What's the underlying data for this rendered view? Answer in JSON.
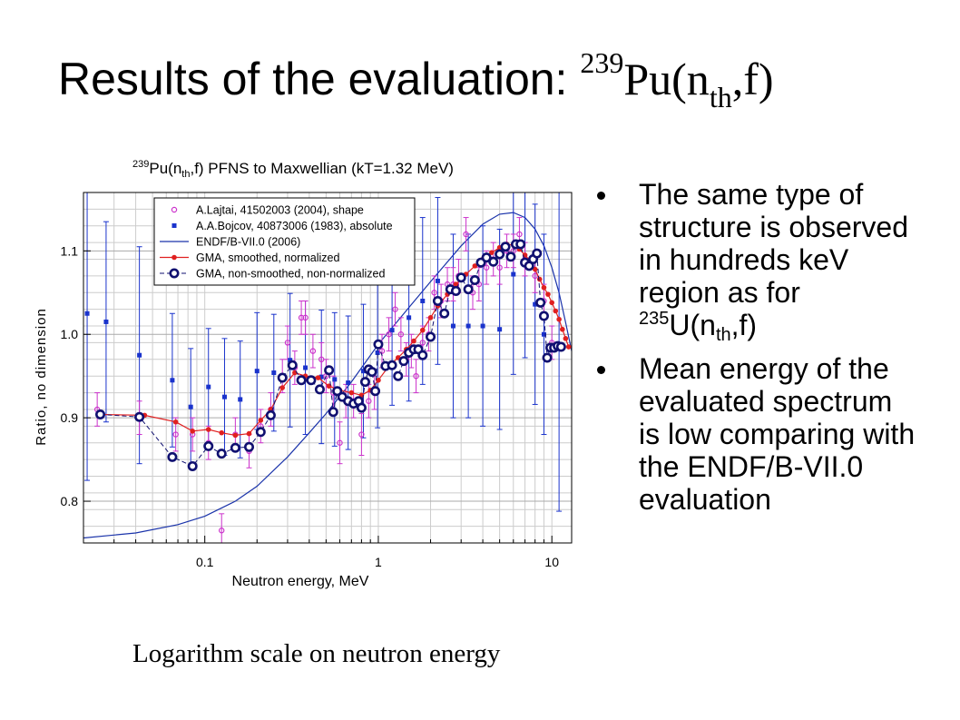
{
  "slide": {
    "title_main": "Results of the evaluation: ",
    "title_sup": "239",
    "title_pu": "Pu(n",
    "title_sub": "th",
    "title_end": ",f)",
    "bullets": [
      {
        "text_before": "The same type of structure is observed in hundreds keV region as for ",
        "sup": "235",
        "mid": "U(n",
        "sub": "th",
        "after": ",f)"
      },
      {
        "text": "Mean energy of the evaluated spectrum is low comparing with the ENDF/B-VII.0 evaluation"
      }
    ],
    "caption": "Logarithm scale on neutron energy"
  },
  "chart_data": {
    "type": "scatter",
    "title_parts": {
      "sup": "239",
      "pre": "Pu(n",
      "sub": "th",
      "post": ",f) PFNS to Maxwellian (kT=1.32 MeV)"
    },
    "xlabel": "Neutron energy, MeV",
    "ylabel": "Ratio, no dimension",
    "xscale": "log",
    "xlim": [
      0.02,
      13
    ],
    "ylim": [
      0.75,
      1.17
    ],
    "x_ticks": [
      {
        "v": 0.1,
        "label": "0.1"
      },
      {
        "v": 1,
        "label": "1"
      },
      {
        "v": 10,
        "label": "10"
      }
    ],
    "y_ticks": [
      {
        "v": 0.8,
        "label": "0.8"
      },
      {
        "v": 0.9,
        "label": "0.9"
      },
      {
        "v": 1.0,
        "label": "1.0"
      },
      {
        "v": 1.1,
        "label": "1.1"
      }
    ],
    "grid": true,
    "legend_position": "top-left",
    "colors": {
      "lajtai": "#cc33cc",
      "bojcov": "#1a33cc",
      "endf": "#1a33aa",
      "gma_smoothed": "#e02020",
      "gma_raw": "#101070",
      "grid": "#cccccc"
    },
    "series": [
      {
        "name": "A.Lajtai, 41502003 (2004), shape",
        "marker": "open-circle",
        "x": [
          0.024,
          0.042,
          0.068,
          0.085,
          0.105,
          0.125,
          0.15,
          0.18,
          0.21,
          0.24,
          0.28,
          0.3,
          0.33,
          0.36,
          0.38,
          0.42,
          0.47,
          0.5,
          0.55,
          0.6,
          0.65,
          0.72,
          0.8,
          0.88,
          0.95,
          1.05,
          1.15,
          1.25,
          1.35,
          1.45,
          1.55,
          1.65,
          1.8,
          1.95,
          2.1,
          2.3,
          2.5,
          2.7,
          2.9,
          3.2,
          3.5,
          3.8,
          4.2,
          4.6,
          5.0,
          5.5,
          6.0,
          6.5,
          7.0,
          8.0,
          9.0,
          10.0
        ],
        "y": [
          0.91,
          0.9,
          0.88,
          0.88,
          0.87,
          0.765,
          0.88,
          0.86,
          0.89,
          0.91,
          0.95,
          0.99,
          0.96,
          1.02,
          1.02,
          0.98,
          0.97,
          0.95,
          0.93,
          0.87,
          0.92,
          0.92,
          0.88,
          0.92,
          0.93,
          0.98,
          1.0,
          1.03,
          1.0,
          0.97,
          0.98,
          0.95,
          0.99,
          1.0,
          1.05,
          1.04,
          1.06,
          1.06,
          1.07,
          1.12,
          1.05,
          1.06,
          1.08,
          1.09,
          1.08,
          1.1,
          1.1,
          1.12,
          1.09,
          1.07,
          1.04,
          0.99
        ],
        "err": [
          0.02,
          0.02,
          0.02,
          0.02,
          0.02,
          0.02,
          0.02,
          0.02,
          0.02,
          0.02,
          0.02,
          0.02,
          0.02,
          0.02,
          0.02,
          0.02,
          0.02,
          0.02,
          0.02,
          0.025,
          0.02,
          0.02,
          0.025,
          0.02,
          0.02,
          0.02,
          0.02,
          0.02,
          0.02,
          0.02,
          0.02,
          0.02,
          0.02,
          0.02,
          0.02,
          0.02,
          0.02,
          0.02,
          0.02,
          0.02,
          0.02,
          0.02,
          0.02,
          0.02,
          0.02,
          0.02,
          0.02,
          0.02,
          0.02,
          0.02,
          0.02,
          0.02
        ]
      },
      {
        "name": "A.A.Bojcov, 40873006 (1983), absolute",
        "marker": "filled-square",
        "x": [
          0.021,
          0.027,
          0.042,
          0.065,
          0.083,
          0.105,
          0.13,
          0.16,
          0.2,
          0.25,
          0.31,
          0.38,
          0.47,
          0.56,
          0.67,
          0.82,
          0.99,
          1.2,
          1.5,
          1.8,
          2.2,
          2.7,
          3.3,
          4.0,
          5.0,
          6.0,
          7.0,
          8.0,
          9.0,
          11.0
        ],
        "y": [
          1.025,
          1.015,
          0.975,
          0.945,
          0.913,
          0.937,
          0.925,
          0.922,
          0.956,
          0.954,
          0.969,
          0.96,
          0.949,
          0.946,
          0.942,
          0.956,
          0.978,
          1.005,
          1.02,
          1.04,
          1.064,
          1.01,
          1.01,
          1.01,
          1.006,
          1.072,
          1.092,
          1.036,
          1.0,
          0.988
        ],
        "err": [
          0.2,
          0.12,
          0.13,
          0.08,
          0.07,
          0.07,
          0.07,
          0.07,
          0.07,
          0.07,
          0.08,
          0.08,
          0.08,
          0.08,
          0.08,
          0.08,
          0.09,
          0.09,
          0.1,
          0.1,
          0.1,
          0.11,
          0.11,
          0.12,
          0.12,
          0.12,
          0.12,
          0.12,
          0.12,
          0.2
        ]
      },
      {
        "name": "ENDF/B-VII.0 (2006)",
        "marker": "line",
        "x": [
          0.02,
          0.04,
          0.07,
          0.1,
          0.15,
          0.2,
          0.3,
          0.4,
          0.5,
          0.7,
          1.0,
          1.5,
          2.0,
          3.0,
          4.0,
          5.0,
          6.0,
          7.0,
          8.0,
          9.0,
          10.0,
          11.0,
          12.0,
          13.0
        ],
        "y": [
          0.756,
          0.762,
          0.772,
          0.782,
          0.8,
          0.818,
          0.853,
          0.882,
          0.905,
          0.943,
          0.988,
          1.032,
          1.063,
          1.106,
          1.132,
          1.144,
          1.146,
          1.14,
          1.126,
          1.106,
          1.08,
          1.05,
          1.014,
          0.98
        ]
      },
      {
        "name": "GMA, smoothed, normalized",
        "marker": "filled-circle-line",
        "x": [
          0.025,
          0.045,
          0.068,
          0.085,
          0.105,
          0.125,
          0.15,
          0.18,
          0.21,
          0.24,
          0.28,
          0.33,
          0.38,
          0.45,
          0.52,
          0.6,
          0.7,
          0.8,
          0.9,
          1.0,
          1.15,
          1.3,
          1.45,
          1.6,
          1.8,
          2.0,
          2.2,
          2.5,
          2.8,
          3.2,
          3.6,
          4.0,
          4.5,
          5.0,
          5.5,
          6.0,
          6.5,
          7.0,
          7.5,
          8.0,
          8.5,
          9.0,
          9.5,
          10.0,
          10.5,
          11.0,
          11.5,
          12.0,
          12.5
        ],
        "y": [
          0.904,
          0.903,
          0.895,
          0.884,
          0.886,
          0.882,
          0.879,
          0.881,
          0.897,
          0.91,
          0.936,
          0.954,
          0.95,
          0.948,
          0.938,
          0.933,
          0.93,
          0.927,
          0.933,
          0.945,
          0.962,
          0.972,
          0.982,
          0.992,
          1.005,
          1.02,
          1.034,
          1.048,
          1.06,
          1.072,
          1.082,
          1.09,
          1.098,
          1.104,
          1.108,
          1.107,
          1.102,
          1.095,
          1.088,
          1.078,
          1.066,
          1.056,
          1.048,
          1.038,
          1.028,
          1.018,
          1.006,
          0.995,
          0.985
        ]
      },
      {
        "name": "GMA, non-smoothed, non-normalized",
        "marker": "open-circle-thick-dashed",
        "x": [
          0.025,
          0.042,
          0.065,
          0.085,
          0.105,
          0.125,
          0.15,
          0.18,
          0.21,
          0.24,
          0.28,
          0.32,
          0.36,
          0.41,
          0.46,
          0.52,
          0.55,
          0.58,
          0.62,
          0.67,
          0.72,
          0.77,
          0.8,
          0.84,
          0.88,
          0.92,
          0.96,
          1.0,
          1.1,
          1.2,
          1.3,
          1.4,
          1.5,
          1.6,
          1.7,
          1.8,
          2.0,
          2.2,
          2.4,
          2.6,
          2.8,
          3.0,
          3.3,
          3.6,
          3.9,
          4.2,
          4.6,
          5.0,
          5.4,
          5.8,
          6.2,
          6.6,
          7.0,
          7.4,
          7.8,
          8.2,
          8.6,
          9.0,
          9.4,
          9.8,
          10.3,
          10.8,
          11.3
        ],
        "y": [
          0.904,
          0.901,
          0.853,
          0.842,
          0.866,
          0.857,
          0.864,
          0.865,
          0.883,
          0.903,
          0.948,
          0.963,
          0.945,
          0.945,
          0.934,
          0.957,
          0.907,
          0.932,
          0.925,
          0.92,
          0.917,
          0.92,
          0.912,
          0.943,
          0.958,
          0.955,
          0.932,
          0.988,
          0.962,
          0.963,
          0.95,
          0.968,
          0.978,
          0.982,
          0.982,
          0.975,
          0.997,
          1.04,
          1.025,
          1.054,
          1.052,
          1.068,
          1.054,
          1.065,
          1.086,
          1.092,
          1.087,
          1.096,
          1.105,
          1.093,
          1.108,
          1.108,
          1.086,
          1.082,
          1.09,
          1.097,
          1.038,
          1.022,
          0.972,
          0.984,
          0.984,
          0.986,
          0.985
        ]
      }
    ]
  }
}
